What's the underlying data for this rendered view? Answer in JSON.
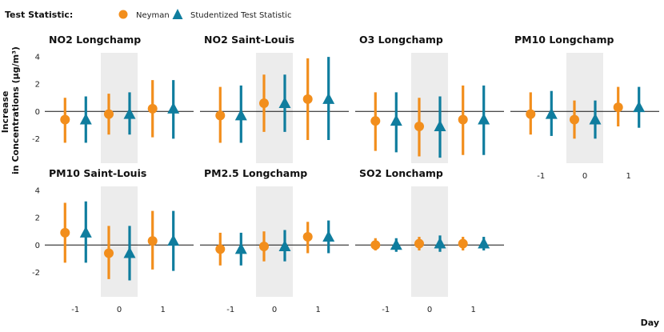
{
  "chart_data": {
    "type": "errorbar",
    "legend": {
      "title": "Test Statistic:",
      "placement": "top-left",
      "entries": [
        {
          "name": "Neyman",
          "marker": "circle",
          "color": "#F28E1C"
        },
        {
          "name": "Studentized Test Statistic",
          "marker": "triangle",
          "color": "#0F7D9E"
        }
      ]
    },
    "ylabel": "Increase\nin Concentrations (µg/m³)",
    "xlabel": "Day",
    "x_categories": [
      -1,
      0,
      1
    ],
    "x_ticks": [
      "-1",
      "0",
      "1"
    ],
    "y_ticks": [
      "-2",
      "0",
      "2",
      "4"
    ],
    "ylim": [
      -3.8,
      4.3
    ],
    "shaded_day": 0,
    "reference_line": 0,
    "series_colors": {
      "Neyman": "#F28E1C",
      "Studentized Test Statistic": "#0F7D9E"
    },
    "panels": [
      {
        "title": "NO2 Longchamp",
        "points": [
          {
            "day": -1,
            "series": "Neyman",
            "estimate": -0.6,
            "lower": -2.3,
            "upper": 1.0
          },
          {
            "day": -1,
            "series": "Studentized Test Statistic",
            "estimate": -0.6,
            "lower": -2.3,
            "upper": 1.1
          },
          {
            "day": 0,
            "series": "Neyman",
            "estimate": -0.2,
            "lower": -1.7,
            "upper": 1.3
          },
          {
            "day": 0,
            "series": "Studentized Test Statistic",
            "estimate": -0.2,
            "lower": -1.7,
            "upper": 1.4
          },
          {
            "day": 1,
            "series": "Neyman",
            "estimate": 0.2,
            "lower": -1.9,
            "upper": 2.3
          },
          {
            "day": 1,
            "series": "Studentized Test Statistic",
            "estimate": 0.2,
            "lower": -2.0,
            "upper": 2.3
          }
        ]
      },
      {
        "title": "NO2 Saint-Louis",
        "points": [
          {
            "day": -1,
            "series": "Neyman",
            "estimate": -0.3,
            "lower": -2.3,
            "upper": 1.8
          },
          {
            "day": -1,
            "series": "Studentized Test Statistic",
            "estimate": -0.3,
            "lower": -2.3,
            "upper": 1.9
          },
          {
            "day": 0,
            "series": "Neyman",
            "estimate": 0.6,
            "lower": -1.5,
            "upper": 2.7
          },
          {
            "day": 0,
            "series": "Studentized Test Statistic",
            "estimate": 0.6,
            "lower": -1.5,
            "upper": 2.7
          },
          {
            "day": 1,
            "series": "Neyman",
            "estimate": 0.9,
            "lower": -2.1,
            "upper": 3.9
          },
          {
            "day": 1,
            "series": "Studentized Test Statistic",
            "estimate": 0.9,
            "lower": -2.1,
            "upper": 4.0
          }
        ]
      },
      {
        "title": "O3 Longchamp",
        "points": [
          {
            "day": -1,
            "series": "Neyman",
            "estimate": -0.7,
            "lower": -2.9,
            "upper": 1.4
          },
          {
            "day": -1,
            "series": "Studentized Test Statistic",
            "estimate": -0.7,
            "lower": -3.0,
            "upper": 1.4
          },
          {
            "day": 0,
            "series": "Neyman",
            "estimate": -1.1,
            "lower": -3.3,
            "upper": 1.0
          },
          {
            "day": 0,
            "series": "Studentized Test Statistic",
            "estimate": -1.1,
            "lower": -3.4,
            "upper": 1.1
          },
          {
            "day": 1,
            "series": "Neyman",
            "estimate": -0.6,
            "lower": -3.2,
            "upper": 1.9
          },
          {
            "day": 1,
            "series": "Studentized Test Statistic",
            "estimate": -0.6,
            "lower": -3.2,
            "upper": 1.9
          }
        ]
      },
      {
        "title": "PM10 Longchamp",
        "points": [
          {
            "day": -1,
            "series": "Neyman",
            "estimate": -0.2,
            "lower": -1.7,
            "upper": 1.4
          },
          {
            "day": -1,
            "series": "Studentized Test Statistic",
            "estimate": -0.2,
            "lower": -1.8,
            "upper": 1.5
          },
          {
            "day": 0,
            "series": "Neyman",
            "estimate": -0.6,
            "lower": -2.0,
            "upper": 0.8
          },
          {
            "day": 0,
            "series": "Studentized Test Statistic",
            "estimate": -0.6,
            "lower": -2.0,
            "upper": 0.8
          },
          {
            "day": 1,
            "series": "Neyman",
            "estimate": 0.3,
            "lower": -1.1,
            "upper": 1.8
          },
          {
            "day": 1,
            "series": "Studentized Test Statistic",
            "estimate": 0.3,
            "lower": -1.2,
            "upper": 1.8
          }
        ]
      },
      {
        "title": "PM10 Saint-Louis",
        "points": [
          {
            "day": -1,
            "series": "Neyman",
            "estimate": 0.9,
            "lower": -1.3,
            "upper": 3.1
          },
          {
            "day": -1,
            "series": "Studentized Test Statistic",
            "estimate": 0.9,
            "lower": -1.3,
            "upper": 3.2
          },
          {
            "day": 0,
            "series": "Neyman",
            "estimate": -0.6,
            "lower": -2.5,
            "upper": 1.4
          },
          {
            "day": 0,
            "series": "Studentized Test Statistic",
            "estimate": -0.6,
            "lower": -2.6,
            "upper": 1.4
          },
          {
            "day": 1,
            "series": "Neyman",
            "estimate": 0.3,
            "lower": -1.8,
            "upper": 2.5
          },
          {
            "day": 1,
            "series": "Studentized Test Statistic",
            "estimate": 0.3,
            "lower": -1.9,
            "upper": 2.5
          }
        ]
      },
      {
        "title": "PM2.5 Longchamp",
        "points": [
          {
            "day": -1,
            "series": "Neyman",
            "estimate": -0.3,
            "lower": -1.5,
            "upper": 0.9
          },
          {
            "day": -1,
            "series": "Studentized Test Statistic",
            "estimate": -0.3,
            "lower": -1.5,
            "upper": 0.9
          },
          {
            "day": 0,
            "series": "Neyman",
            "estimate": -0.1,
            "lower": -1.2,
            "upper": 1.0
          },
          {
            "day": 0,
            "series": "Studentized Test Statistic",
            "estimate": -0.1,
            "lower": -1.2,
            "upper": 1.1
          },
          {
            "day": 1,
            "series": "Neyman",
            "estimate": 0.6,
            "lower": -0.6,
            "upper": 1.7
          },
          {
            "day": 1,
            "series": "Studentized Test Statistic",
            "estimate": 0.6,
            "lower": -0.6,
            "upper": 1.8
          }
        ]
      },
      {
        "title": "SO2 Lonchamp",
        "points": [
          {
            "day": -1,
            "series": "Neyman",
            "estimate": 0.0,
            "lower": -0.4,
            "upper": 0.5
          },
          {
            "day": -1,
            "series": "Studentized Test Statistic",
            "estimate": 0.0,
            "lower": -0.5,
            "upper": 0.5
          },
          {
            "day": 0,
            "series": "Neyman",
            "estimate": 0.1,
            "lower": -0.4,
            "upper": 0.6
          },
          {
            "day": 0,
            "series": "Studentized Test Statistic",
            "estimate": 0.1,
            "lower": -0.5,
            "upper": 0.7
          },
          {
            "day": 1,
            "series": "Neyman",
            "estimate": 0.1,
            "lower": -0.4,
            "upper": 0.6
          },
          {
            "day": 1,
            "series": "Studentized Test Statistic",
            "estimate": 0.1,
            "lower": -0.4,
            "upper": 0.6
          }
        ]
      }
    ]
  }
}
